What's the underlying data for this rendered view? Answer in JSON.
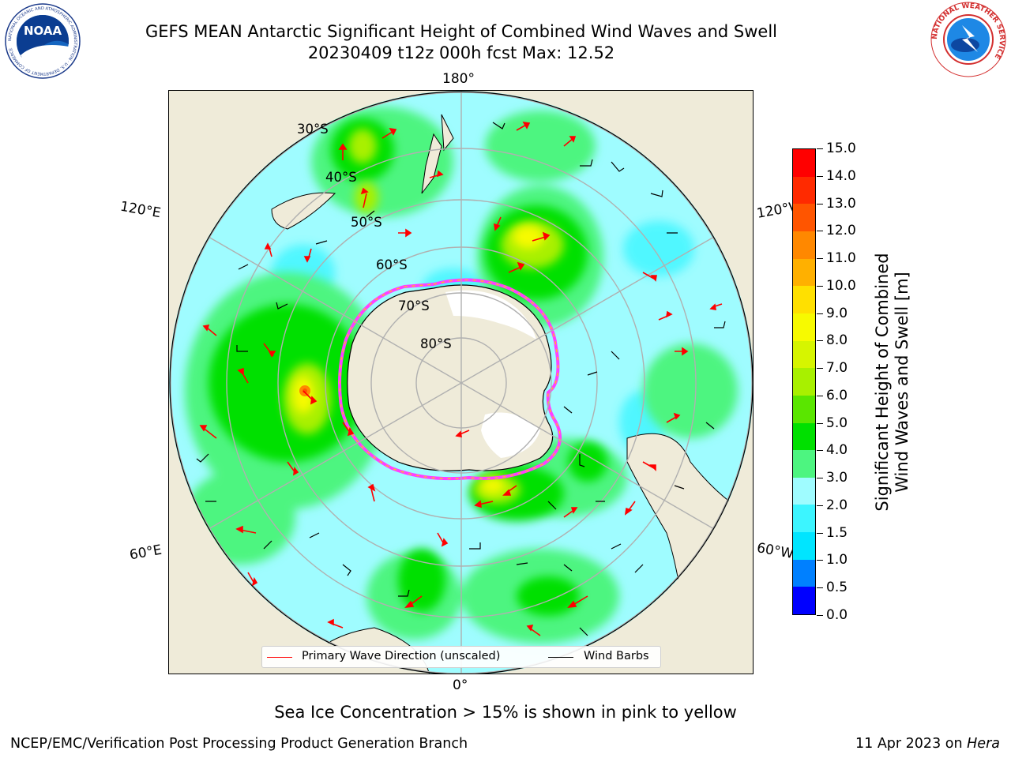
{
  "header": {
    "title_line1": "GEFS MEAN Antarctic Significant Height of Combined Wind Waves and Swell",
    "title_line2": "20230409 t12z 000h fcst   Max: 12.52",
    "left_logo_text": "NOAA",
    "left_logo_ring": "NATIONAL OCEANIC AND ATMOSPHERIC ADMINISTRATION · U.S. DEPARTMENT OF COMMERCE",
    "right_logo_ring": "NATIONAL WEATHER SERVICE"
  },
  "map": {
    "longitude_labels": {
      "top": "180°",
      "upper_left": "120°E",
      "upper_right": "120°W",
      "lower_left": "60°E",
      "lower_right": "60°W",
      "bottom": "0°"
    },
    "latitude_labels": [
      "30°S",
      "40°S",
      "50°S",
      "60°S",
      "70°S",
      "80°S"
    ],
    "colors": {
      "land": "#efebd9",
      "ice_edge": "#ff40ff",
      "vector": "#ff0000",
      "barb": "#000000"
    }
  },
  "legend": {
    "items": [
      {
        "label": "Primary Wave Direction (unscaled)",
        "color": "#ff0000"
      },
      {
        "label": "Wind Barbs",
        "color": "#000000"
      }
    ]
  },
  "colorbar": {
    "title_line1": "Significant Height of Combined",
    "title_line2": "Wind Waves and Swell [m]",
    "ticks": [
      "0.0",
      "0.5",
      "1.0",
      "1.5",
      "2.0",
      "3.0",
      "4.0",
      "5.0",
      "6.0",
      "7.0",
      "8.0",
      "9.0",
      "10.0",
      "11.0",
      "12.0",
      "13.0",
      "14.0",
      "15.0"
    ],
    "colors": [
      "#0000ff",
      "#0080ff",
      "#00e5ff",
      "#3cf5ff",
      "#9ffcff",
      "#4df580",
      "#00e000",
      "#5ae600",
      "#a8f000",
      "#d6f500",
      "#f7fa00",
      "#ffe000",
      "#ffb000",
      "#ff8800",
      "#ff5500",
      "#ff2a00",
      "#ff0000"
    ]
  },
  "note": "Sea Ice Concentration > 15% is shown in pink to yellow",
  "footer": {
    "left": "NCEP/EMC/Verification Post Processing Product Generation Branch",
    "right_prefix": "11 Apr 2023 on ",
    "right_host": "Hera"
  }
}
